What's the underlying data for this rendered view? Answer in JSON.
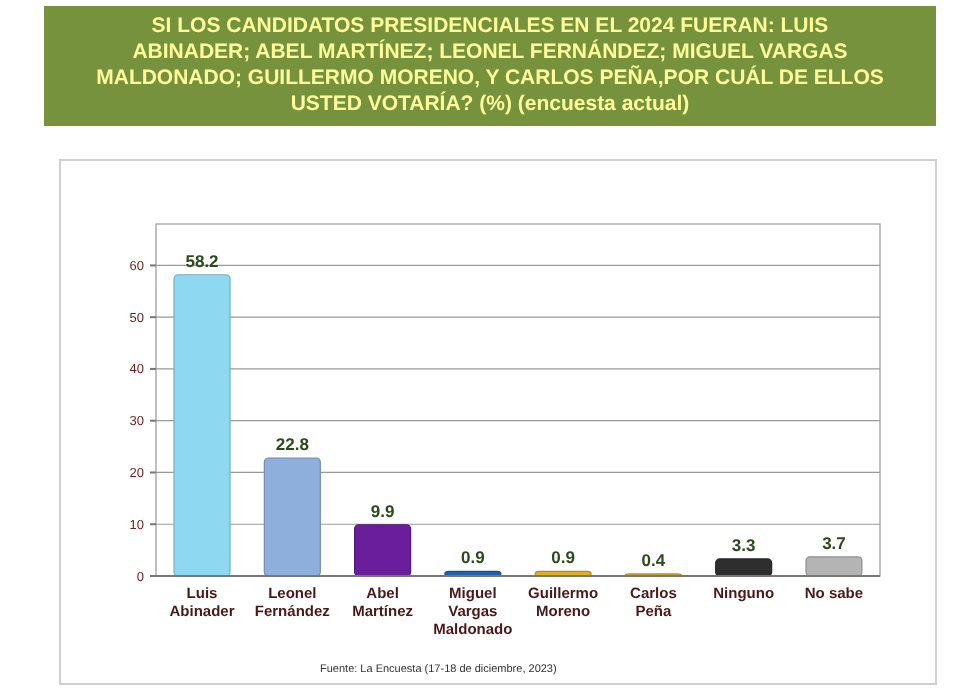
{
  "chart_data": {
    "type": "bar",
    "title": "SI LOS CANDIDATOS PRESIDENCIALES EN EL 2024 FUERAN: LUIS ABINADER; ABEL MARTÍNEZ; LEONEL FERNÁNDEZ; MIGUEL VARGAS MALDONADO; GUILLERMO MORENO, Y CARLOS PEÑA,POR CUÁL DE ELLOS USTED VOTARÍA? (%) (encuesta actual)",
    "categories": [
      "Luis Abinader",
      "Leonel Fernández",
      "Abel Martínez",
      "Miguel Vargas Maldonado",
      "Guillermo Moreno",
      "Carlos Peña",
      "Ninguno",
      "No sabe"
    ],
    "values": [
      58.2,
      22.8,
      9.9,
      0.9,
      0.9,
      0.4,
      3.3,
      3.7
    ],
    "colors": [
      "#8fd8f2",
      "#8eaedb",
      "#6a1e9c",
      "#1f60b3",
      "#e0b022",
      "#e0b022",
      "#2e2e2e",
      "#b4b4b4"
    ],
    "data_labels": true,
    "ylim": [
      0,
      68
    ],
    "yticks": [
      0,
      10,
      20,
      30,
      40,
      50,
      60
    ],
    "grid": "y",
    "annotations": [
      "Fuente: La Encuesta (17-18 de diciembre, 2023)"
    ]
  }
}
